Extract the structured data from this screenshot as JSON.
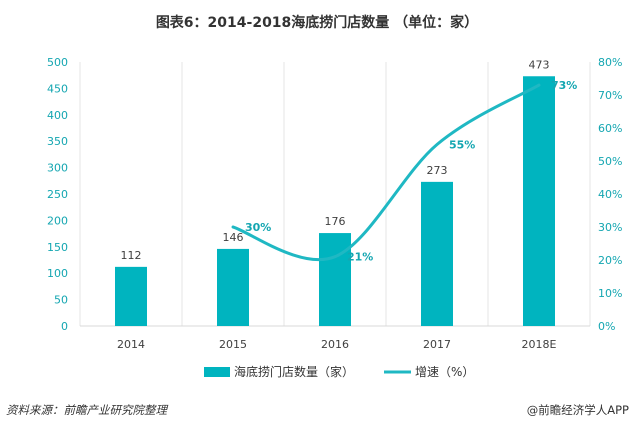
{
  "chart_data": {
    "type": "bar",
    "title": "图表6：2014-2018海底捞门店数量 （单位：家）",
    "categories": [
      "2014",
      "2015",
      "2016",
      "2017",
      "2018E"
    ],
    "ylim": [
      0,
      500
    ],
    "y_tick_labels": [
      "0",
      "50",
      "100",
      "150",
      "200",
      "250",
      "300",
      "350",
      "400",
      "450",
      "500"
    ],
    "y2lim": [
      0,
      80
    ],
    "y2_tick_labels": [
      "0%",
      "10%",
      "20%",
      "30%",
      "40%",
      "50%",
      "60%",
      "70%",
      "80%"
    ],
    "grid": {
      "vertical": true,
      "horizontal": false
    },
    "legend": "bottom",
    "series": [
      {
        "name": "海底捞门店数量（家）",
        "type": "bar",
        "axis": "left",
        "values": [
          112,
          146,
          176,
          273,
          473
        ],
        "labels": [
          "112",
          "146",
          "176",
          "273",
          "473"
        ],
        "color": "#00B4BF"
      },
      {
        "name": "增速（%）",
        "type": "line",
        "axis": "right",
        "smooth": true,
        "values": [
          null,
          30,
          21,
          55,
          73
        ],
        "labels": [
          null,
          "30%",
          "21%",
          "55%",
          "73%"
        ],
        "color": "#1FB8C3"
      }
    ]
  },
  "colors": {
    "tick_label": "#14A6B1",
    "line_label": "#14A6B1",
    "gridline": "#E4E4E4"
  },
  "footer": {
    "source": "资料来源：前瞻产业研究院整理",
    "credit": "@前瞻经济学人APP"
  }
}
